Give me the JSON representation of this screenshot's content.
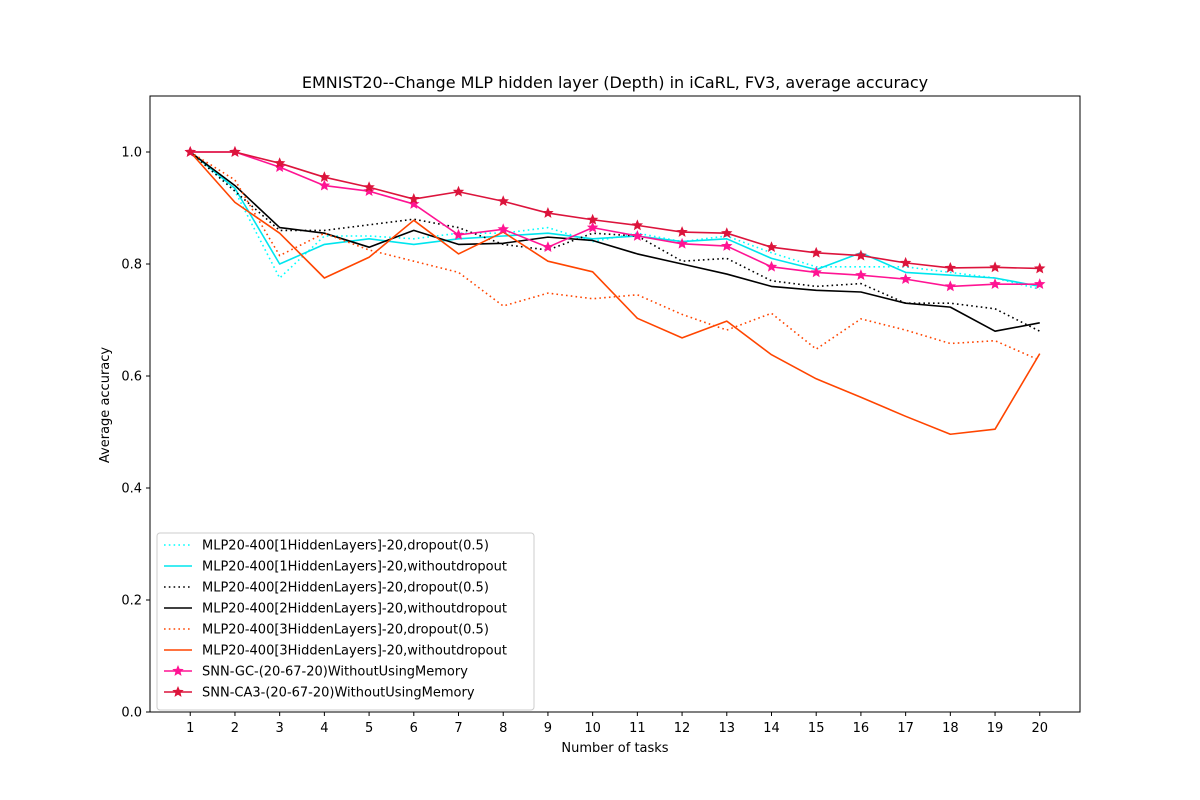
{
  "chart_data": {
    "type": "line",
    "title": "EMNIST20--Change MLP hidden layer (Depth) in iCaRL, FV3, average accuracy",
    "xlabel": "Number of tasks",
    "ylabel": "Average accuracy",
    "x": [
      1,
      2,
      3,
      4,
      5,
      6,
      7,
      8,
      9,
      10,
      11,
      12,
      13,
      14,
      15,
      16,
      17,
      18,
      19,
      20
    ],
    "xlim": [
      0.1,
      20.9
    ],
    "ylim": [
      0.0,
      1.1
    ],
    "yticks": [
      0.0,
      0.2,
      0.4,
      0.6,
      0.8,
      1.0
    ],
    "ytick_labels": [
      "0.0",
      "0.2",
      "0.4",
      "0.6",
      "0.8",
      "1.0"
    ],
    "xtick_labels": [
      "1",
      "2",
      "3",
      "4",
      "5",
      "6",
      "7",
      "8",
      "9",
      "10",
      "11",
      "12",
      "13",
      "14",
      "15",
      "16",
      "17",
      "18",
      "19",
      "20"
    ],
    "grid": false,
    "legend_position": "lower-left",
    "series": [
      {
        "name": "MLP20-400[1HiddenLayers]-20,dropout(0.5)",
        "color": "#00ffff",
        "dash": "dotted",
        "marker": "none",
        "values": [
          1.0,
          0.93,
          0.775,
          0.85,
          0.85,
          0.845,
          0.855,
          0.855,
          0.865,
          0.84,
          0.855,
          0.84,
          0.85,
          0.82,
          0.795,
          0.795,
          0.795,
          0.785,
          0.775,
          0.755
        ]
      },
      {
        "name": "MLP20-400[1HiddenLayers]-20,withoutdropout",
        "color": "#00e5ee",
        "dash": "solid",
        "marker": "none",
        "values": [
          1.0,
          0.935,
          0.8,
          0.835,
          0.845,
          0.835,
          0.845,
          0.85,
          0.855,
          0.845,
          0.85,
          0.84,
          0.845,
          0.81,
          0.79,
          0.82,
          0.785,
          0.78,
          0.775,
          0.76
        ]
      },
      {
        "name": "MLP20-400[2HiddenLayers]-20,dropout(0.5)",
        "color": "#000000",
        "dash": "dotted",
        "marker": "none",
        "values": [
          1.0,
          0.93,
          0.86,
          0.86,
          0.87,
          0.88,
          0.865,
          0.835,
          0.825,
          0.855,
          0.85,
          0.805,
          0.81,
          0.77,
          0.76,
          0.765,
          0.73,
          0.73,
          0.72,
          0.68
        ]
      },
      {
        "name": "MLP20-400[2HiddenLayers]-20,withoutdropout",
        "color": "#000000",
        "dash": "solid",
        "marker": "none",
        "values": [
          1.0,
          0.94,
          0.865,
          0.855,
          0.83,
          0.86,
          0.835,
          0.837,
          0.848,
          0.842,
          0.818,
          0.8,
          0.782,
          0.76,
          0.753,
          0.75,
          0.73,
          0.723,
          0.68,
          0.695
        ]
      },
      {
        "name": "MLP20-400[3HiddenLayers]-20,dropout(0.5)",
        "color": "#ff4500",
        "dash": "dotted",
        "marker": "none",
        "values": [
          1.0,
          0.95,
          0.815,
          0.855,
          0.825,
          0.805,
          0.785,
          0.725,
          0.748,
          0.738,
          0.745,
          0.71,
          0.682,
          0.712,
          0.648,
          0.702,
          0.682,
          0.658,
          0.663,
          0.628
        ]
      },
      {
        "name": "MLP20-400[3HiddenLayers]-20,withoutdropout",
        "color": "#ff4500",
        "dash": "solid",
        "marker": "none",
        "values": [
          1.0,
          0.91,
          0.855,
          0.775,
          0.812,
          0.878,
          0.818,
          0.857,
          0.805,
          0.786,
          0.703,
          0.668,
          0.698,
          0.638,
          0.595,
          0.562,
          0.528,
          0.496,
          0.505,
          0.64
        ]
      },
      {
        "name": "SNN-GC-(20-67-20)WithoutUsingMemory",
        "color": "#ff1493",
        "dash": "solid",
        "marker": "star",
        "values": [
          1.0,
          1.0,
          0.973,
          0.94,
          0.93,
          0.907,
          0.852,
          0.862,
          0.83,
          0.865,
          0.85,
          0.836,
          0.832,
          0.795,
          0.785,
          0.78,
          0.773,
          0.76,
          0.764,
          0.764
        ]
      },
      {
        "name": "SNN-CA3-(20-67-20)WithoutUsingMemory",
        "color": "#dc143c",
        "dash": "solid",
        "marker": "star",
        "values": [
          1.0,
          1.0,
          0.98,
          0.955,
          0.937,
          0.916,
          0.929,
          0.912,
          0.891,
          0.879,
          0.869,
          0.857,
          0.855,
          0.83,
          0.82,
          0.815,
          0.802,
          0.793,
          0.794,
          0.792
        ]
      }
    ]
  }
}
